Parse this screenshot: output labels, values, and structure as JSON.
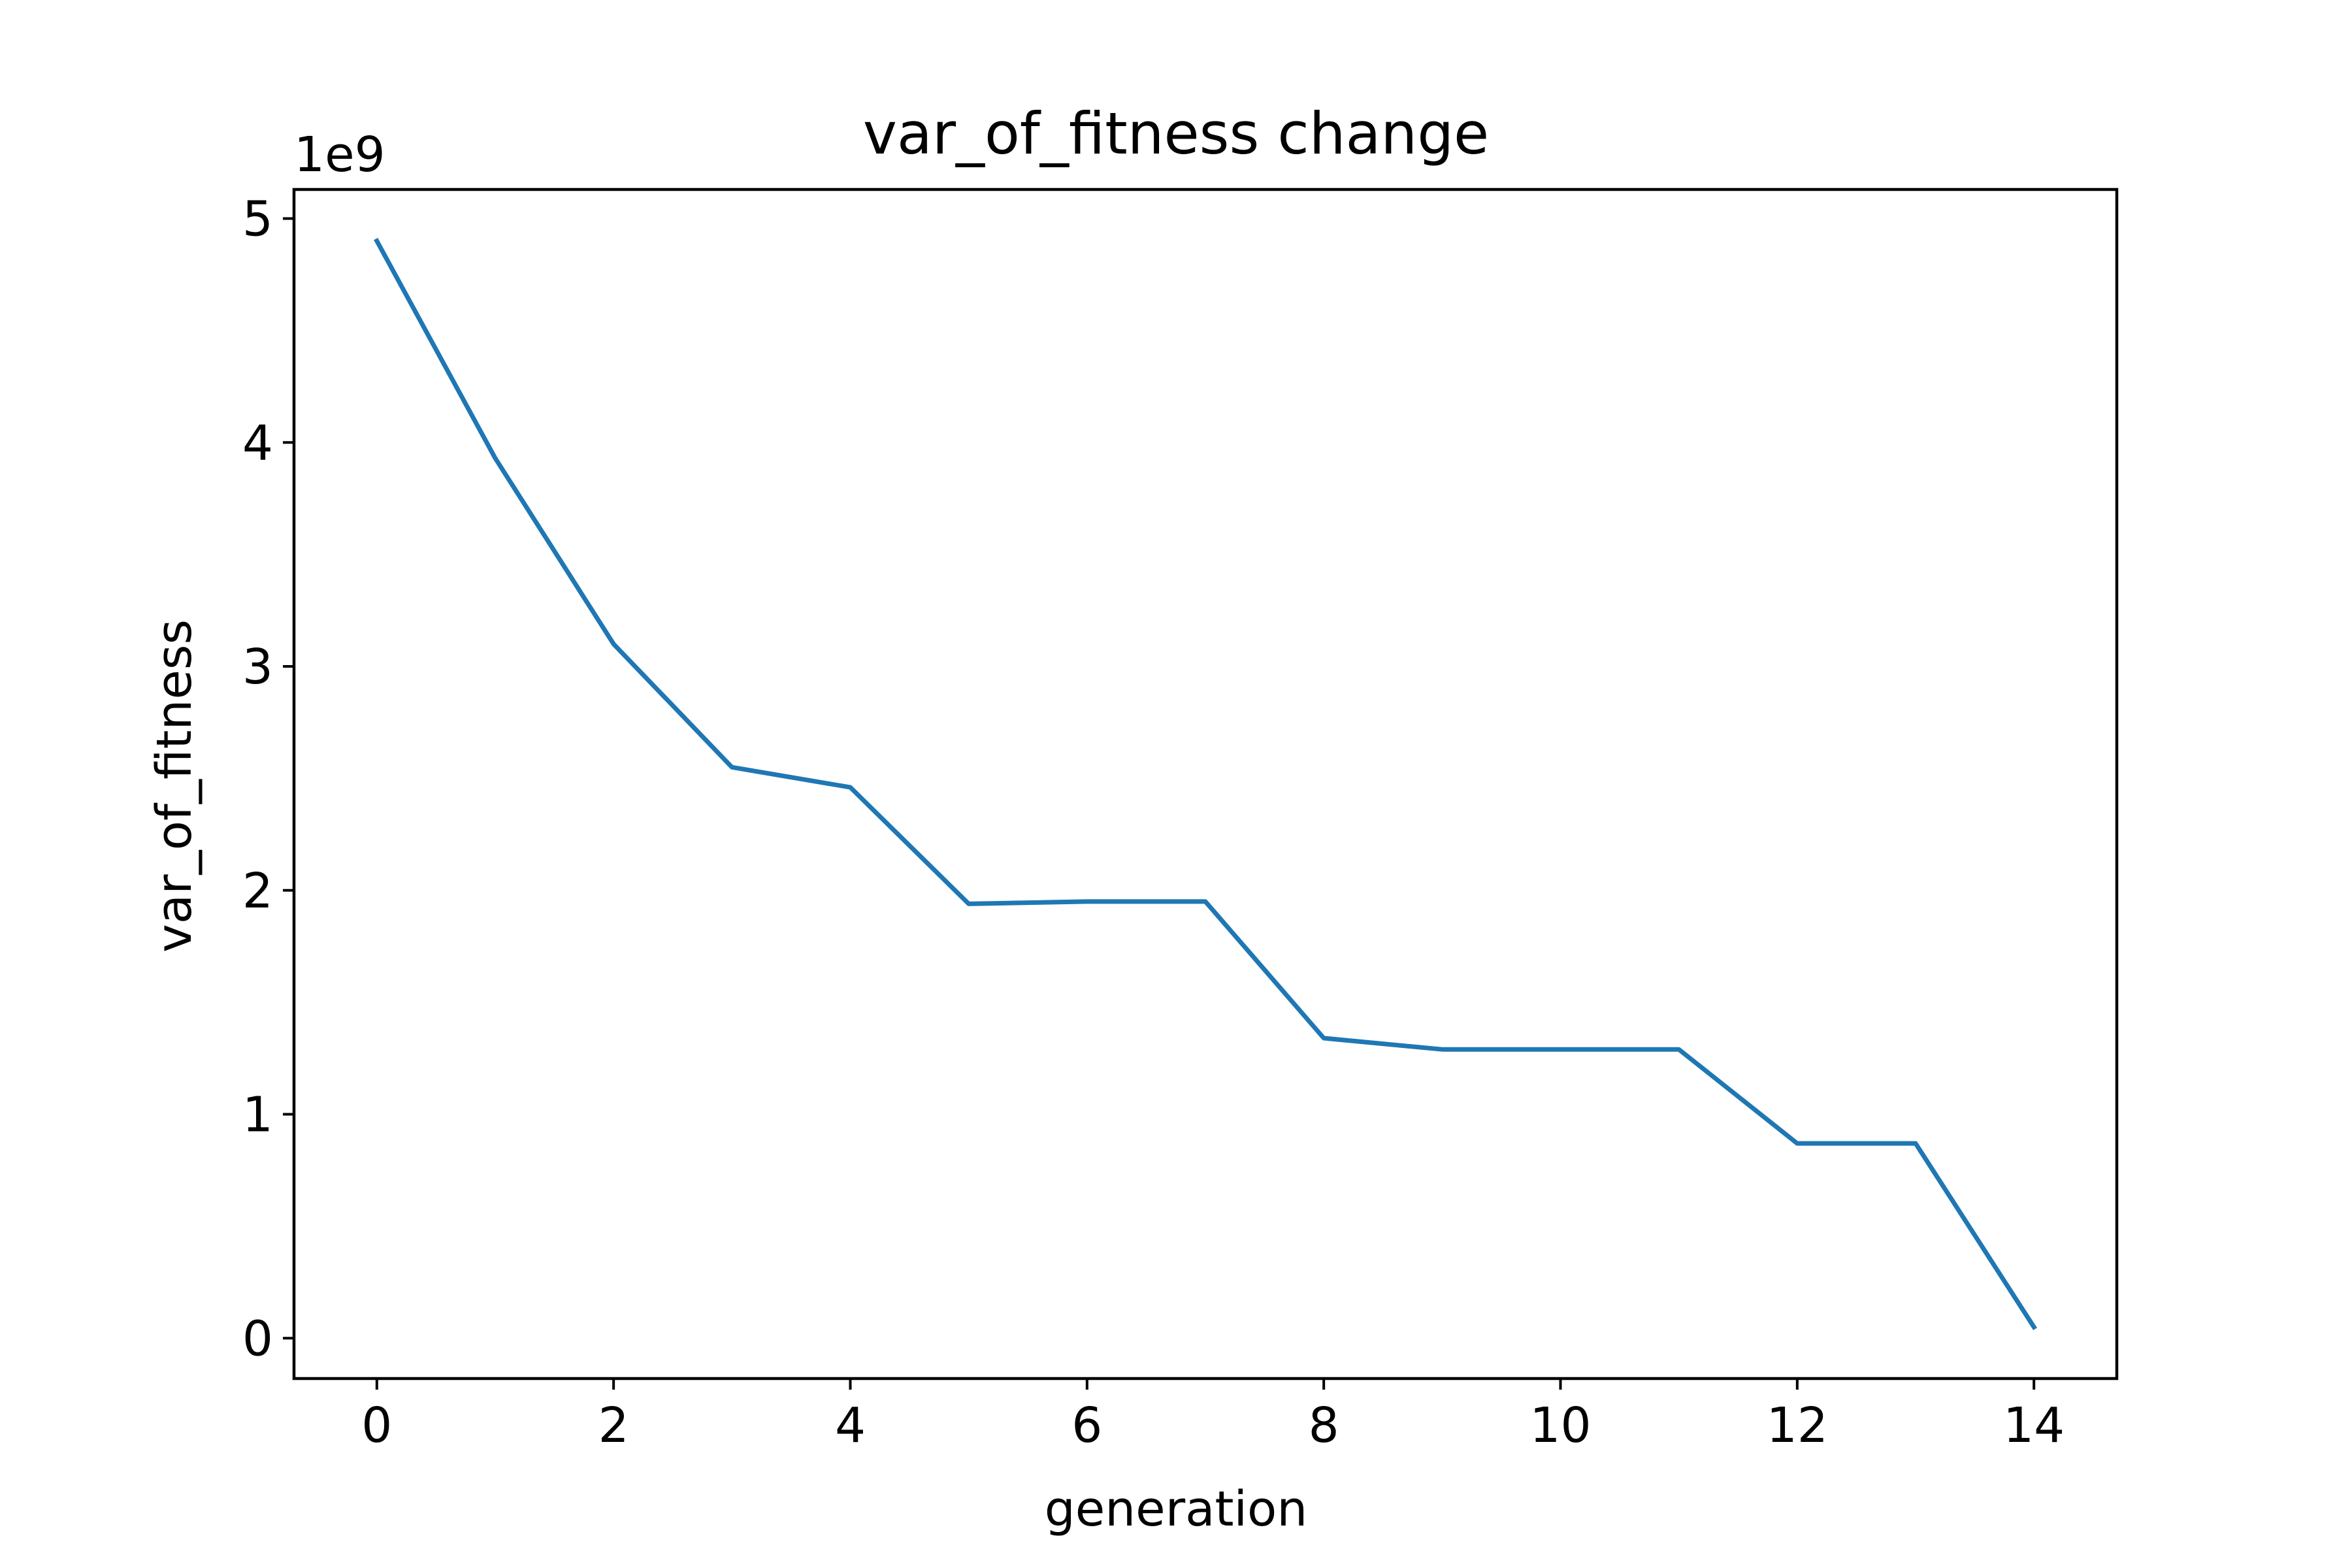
{
  "chart_data": {
    "type": "line",
    "title": "var_of_fitness change",
    "xlabel": "generation",
    "ylabel": "var_of_fitness",
    "y_offset_text": "1e9",
    "xlim": [
      -0.7,
      14.7
    ],
    "ylim": [
      -0.18,
      5.13
    ],
    "y_scale_factor": 1000000000,
    "xticks": [
      0,
      2,
      4,
      6,
      8,
      10,
      12,
      14
    ],
    "xtick_labels": [
      "0",
      "2",
      "4",
      "6",
      "8",
      "10",
      "12",
      "14"
    ],
    "yticks": [
      0,
      1,
      2,
      3,
      4,
      5
    ],
    "ytick_labels": [
      "0",
      "1",
      "2",
      "3",
      "4",
      "5"
    ],
    "grid": false,
    "legend": "none",
    "series": [
      {
        "color": "#1f77b4",
        "x": [
          0,
          1,
          2,
          3,
          4,
          5,
          6,
          7,
          8,
          9,
          10,
          11,
          12,
          13,
          14
        ],
        "y": [
          4.9,
          3.93,
          3.1,
          2.55,
          2.46,
          1.94,
          1.95,
          1.95,
          1.34,
          1.29,
          1.29,
          1.29,
          0.87,
          0.87,
          0.05
        ]
      }
    ]
  }
}
